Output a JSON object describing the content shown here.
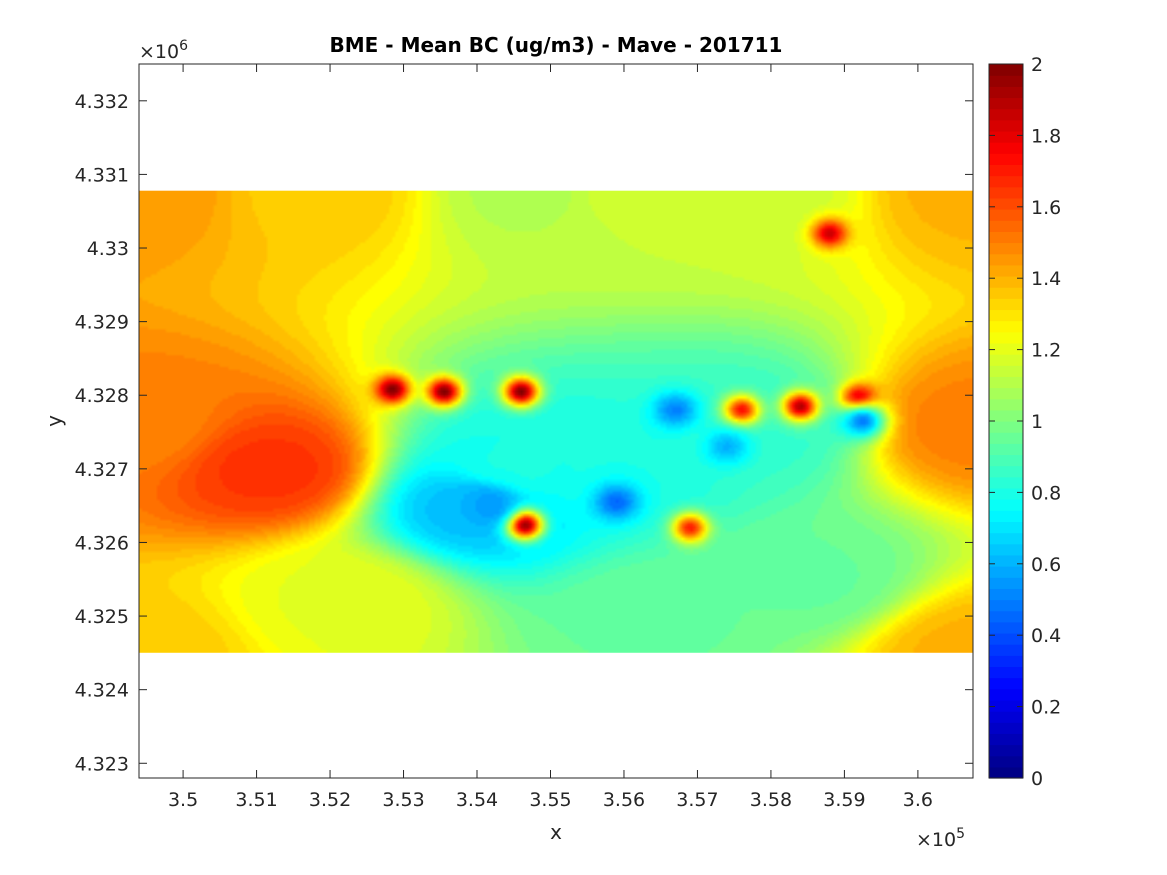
{
  "chart_data": {
    "type": "heatmap",
    "title": "BME - Mean BC (ug/m3) -  Mave - 201711",
    "xlabel": "x",
    "ylabel": "y",
    "x_exponent": {
      "base": "×10",
      "power": "5"
    },
    "y_exponent": {
      "base": "×10",
      "power": "6"
    },
    "xlim": [
      349400,
      360750
    ],
    "ylim": [
      4322800,
      4332500
    ],
    "x_ticks": [
      350000,
      351000,
      352000,
      353000,
      354000,
      355000,
      356000,
      357000,
      358000,
      359000,
      360000
    ],
    "x_tick_labels": [
      "3.5",
      "3.51",
      "3.52",
      "3.53",
      "3.54",
      "3.55",
      "3.56",
      "3.57",
      "3.58",
      "3.59",
      "3.6"
    ],
    "y_ticks": [
      4323000,
      4324000,
      4325000,
      4326000,
      4327000,
      4328000,
      4329000,
      4330000,
      4331000,
      4332000
    ],
    "y_tick_labels": [
      "4.323",
      "4.324",
      "4.325",
      "4.326",
      "4.327",
      "4.328",
      "4.329",
      "4.33",
      "4.331",
      "4.332"
    ],
    "data_extent": {
      "x": [
        349400,
        360750
      ],
      "y": [
        4324500,
        4330780
      ]
    },
    "colormap": "jet",
    "clim": [
      0,
      2
    ],
    "colorbar_ticks": [
      0,
      0.2,
      0.4,
      0.6,
      0.8,
      1,
      1.2,
      1.4,
      1.6,
      1.8,
      2
    ],
    "colorbar_tick_labels": [
      "0",
      "0.2",
      "0.4",
      "0.6",
      "0.8",
      "1",
      "1.2",
      "1.4",
      "1.6",
      "1.8",
      "2"
    ],
    "field_approx": {
      "background": [
        {
          "x": 349400,
          "y": 4330780,
          "v": 1.45
        },
        {
          "x": 349400,
          "y": 4327600,
          "v": 1.5
        },
        {
          "x": 349400,
          "y": 4324500,
          "v": 1.35
        },
        {
          "x": 351800,
          "y": 4330780,
          "v": 1.35
        },
        {
          "x": 351200,
          "y": 4327000,
          "v": 1.65
        },
        {
          "x": 352200,
          "y": 4325200,
          "v": 1.2
        },
        {
          "x": 354800,
          "y": 4330780,
          "v": 1.1
        },
        {
          "x": 354500,
          "y": 4327000,
          "v": 0.8
        },
        {
          "x": 354000,
          "y": 4326500,
          "v": 0.62
        },
        {
          "x": 356000,
          "y": 4330780,
          "v": 1.15
        },
        {
          "x": 356000,
          "y": 4327000,
          "v": 0.8
        },
        {
          "x": 356500,
          "y": 4325000,
          "v": 0.95
        },
        {
          "x": 357800,
          "y": 4330780,
          "v": 1.15
        },
        {
          "x": 357800,
          "y": 4327500,
          "v": 0.85
        },
        {
          "x": 358500,
          "y": 4325500,
          "v": 0.95
        },
        {
          "x": 360750,
          "y": 4330780,
          "v": 1.4
        },
        {
          "x": 360750,
          "y": 4327600,
          "v": 1.5
        },
        {
          "x": 360750,
          "y": 4324500,
          "v": 1.4
        }
      ],
      "hotspots": [
        {
          "x": 352850,
          "y": 4328080,
          "v": 2.0
        },
        {
          "x": 353550,
          "y": 4328050,
          "v": 2.0
        },
        {
          "x": 354600,
          "y": 4328050,
          "v": 2.0
        },
        {
          "x": 354650,
          "y": 4326240,
          "v": 2.0
        },
        {
          "x": 359200,
          "y": 4327950,
          "v": 2.0
        },
        {
          "x": 358400,
          "y": 4327850,
          "v": 1.9
        },
        {
          "x": 357600,
          "y": 4327800,
          "v": 1.75
        },
        {
          "x": 358800,
          "y": 4330200,
          "v": 1.85
        },
        {
          "x": 356900,
          "y": 4326200,
          "v": 1.7
        }
      ],
      "coldspots": [
        {
          "x": 354200,
          "y": 4326500,
          "v": 0.55
        },
        {
          "x": 355900,
          "y": 4326550,
          "v": 0.45
        },
        {
          "x": 356700,
          "y": 4327800,
          "v": 0.5
        },
        {
          "x": 359250,
          "y": 4327650,
          "v": 0.5
        },
        {
          "x": 357400,
          "y": 4327300,
          "v": 0.6
        }
      ]
    }
  }
}
